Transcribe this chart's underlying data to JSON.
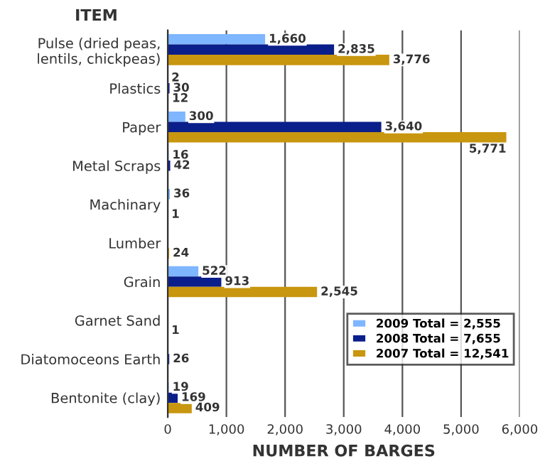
{
  "chart_data": {
    "type": "bar",
    "orientation": "horizontal",
    "ylabel": "ITEM",
    "xlabel": "NUMBER OF BARGES",
    "categories": [
      "Pulse (dried peas,\nlentils, chickpeas)",
      "Plastics",
      "Paper",
      "Metal Scraps",
      "Machinary",
      "Lumber",
      "Grain",
      "Garnet Sand",
      "Diatomoceons Earth",
      "Bentonite (clay)"
    ],
    "series": [
      {
        "name": "2009 Total = 2,555",
        "color": "#7eb6ff",
        "values": [
          1660,
          2,
          300,
          16,
          36,
          null,
          522,
          null,
          null,
          19
        ],
        "value_labels": [
          "1,660",
          "2",
          "300",
          "16",
          "36",
          null,
          "522",
          null,
          null,
          "19"
        ]
      },
      {
        "name": "2008 Total = 7,655",
        "color": "#0a1f8a",
        "values": [
          2835,
          30,
          3640,
          42,
          null,
          null,
          913,
          null,
          26,
          169
        ],
        "value_labels": [
          "2,835",
          "30",
          "3,640",
          "42",
          null,
          null,
          "913",
          null,
          "26",
          "169"
        ]
      },
      {
        "name": "2007 Total = 12,541",
        "color": "#c8960f",
        "values": [
          3776,
          12,
          5771,
          null,
          1,
          24,
          2545,
          1,
          null,
          409
        ],
        "value_labels": [
          "3,776",
          "12",
          "5,771",
          null,
          "1",
          "24",
          "2,545",
          "1",
          null,
          "409"
        ]
      }
    ],
    "xlim": [
      0,
      6000
    ],
    "xticks": [
      0,
      {
        "value": 1000,
        "label": "1,000"
      },
      {
        "value": 2000,
        "label": "2,000"
      },
      {
        "value": 3000,
        "label": "3,000"
      },
      {
        "value": 4000,
        "label": "4,000"
      },
      {
        "value": 5000,
        "label": "5,000"
      },
      {
        "value": 6000,
        "label": "6,000"
      }
    ],
    "grid": "x",
    "legend": "bottom right"
  }
}
